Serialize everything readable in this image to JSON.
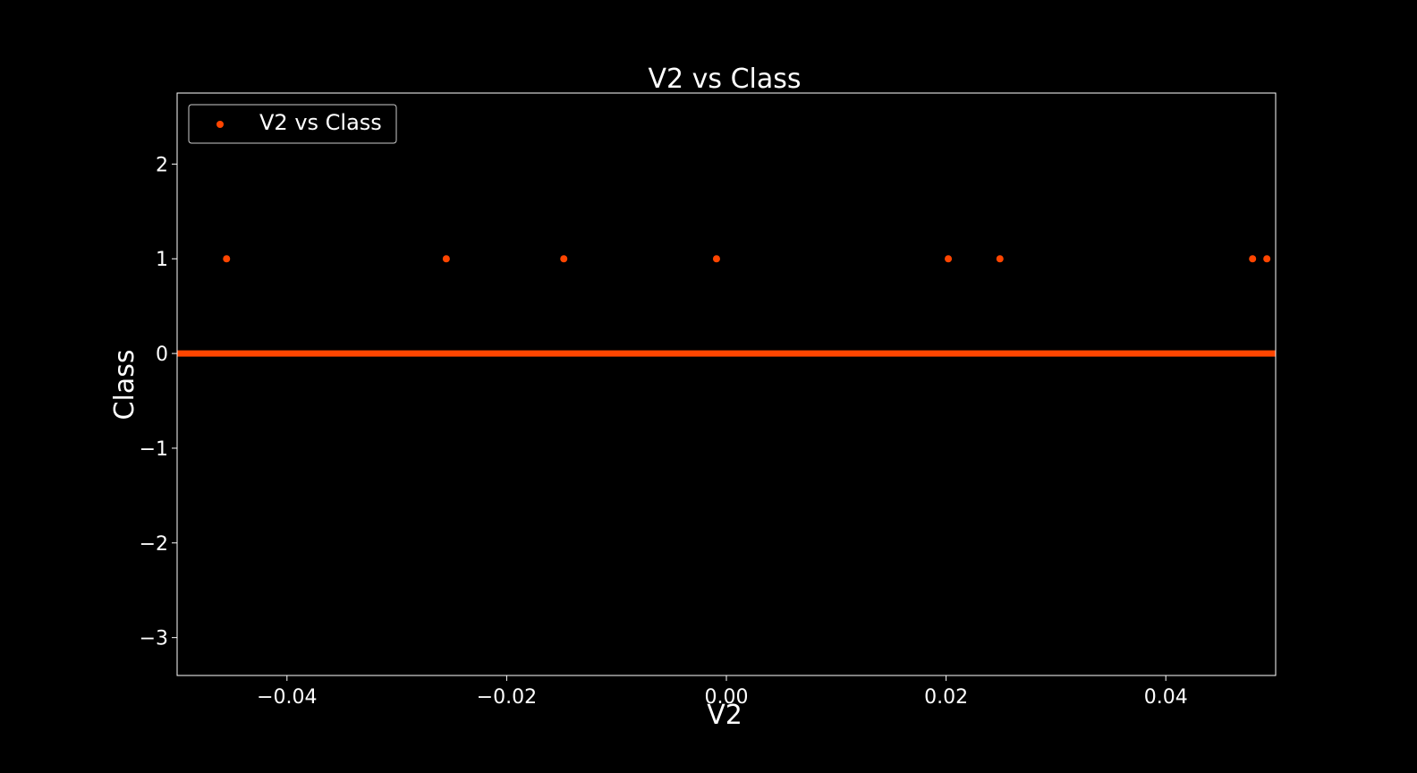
{
  "chart_data": {
    "type": "scatter",
    "title": "V2 vs Class",
    "xlabel": "V2",
    "ylabel": "Class",
    "xlim": [
      -0.05,
      0.05
    ],
    "ylim": [
      -3.4,
      2.75
    ],
    "xticks": [
      -0.04,
      -0.02,
      0.0,
      0.02,
      0.04
    ],
    "xtick_labels": [
      "−0.04",
      "−0.02",
      "0.00",
      "0.02",
      "0.04"
    ],
    "yticks": [
      -3,
      -2,
      -1,
      0,
      1,
      2
    ],
    "ytick_labels": [
      "−3",
      "−2",
      "−1",
      "0",
      "1",
      "2"
    ],
    "grid": false,
    "legend_position": "top-left",
    "background": "#000000",
    "foreground": "#ffffff",
    "series": [
      {
        "name": "V2 vs Class",
        "color": "#ff4500",
        "points": [
          {
            "x": -0.0455,
            "y": 1
          },
          {
            "x": -0.0255,
            "y": 1
          },
          {
            "x": -0.0148,
            "y": 1
          },
          {
            "x": -0.0009,
            "y": 1
          },
          {
            "x": 0.0202,
            "y": 1
          },
          {
            "x": 0.0249,
            "y": 1
          },
          {
            "x": 0.0479,
            "y": 1
          },
          {
            "x": 0.0492,
            "y": 1
          }
        ],
        "dense_band": {
          "x_from": -0.05,
          "x_to": 0.05,
          "y": 0
        }
      }
    ]
  }
}
